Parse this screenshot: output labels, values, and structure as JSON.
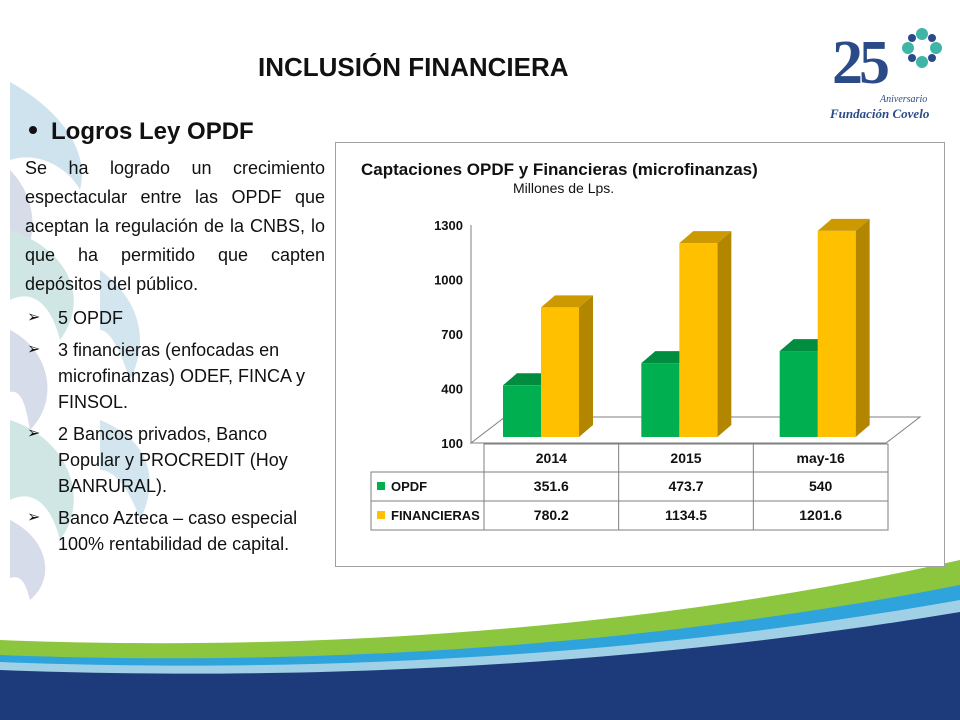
{
  "slide": {
    "title": "INCLUSIÓN FINANCIERA"
  },
  "logo": {
    "number": "25",
    "line1": "Aniversario",
    "line2": "Fundación Covelo"
  },
  "content": {
    "heading": "Logros Ley OPDF",
    "paragraph": "Se ha logrado un crecimiento espectacular entre las OPDF que aceptan la regulación de la CNBS, lo que ha permitido que capten depósitos del público.",
    "items": [
      "5 OPDF",
      "3 financieras (enfocadas en microfinanzas) ODEF, FINCA y FINSOL.",
      "2 Bancos privados, Banco Popular y PROCREDIT (Hoy BANRURAL).",
      "Banco Azteca – caso especial 100% rentabilidad de capital."
    ]
  },
  "colors": {
    "opdf": "#00b050",
    "financieras": "#ffc000"
  },
  "chart_data": {
    "type": "bar",
    "title": "Captaciones OPDF y Financieras (microfinanzas)",
    "subtitle": "Millones de Lps.",
    "categories": [
      "2014",
      "2015",
      "may-16"
    ],
    "series": [
      {
        "name": "OPDF",
        "values": [
          351.6,
          473.7,
          540
        ],
        "labels": [
          "351.6",
          "473.7",
          "540"
        ]
      },
      {
        "name": "FINANCIERAS",
        "values": [
          780.2,
          1134.5,
          1201.6
        ],
        "labels": [
          "780.2",
          "1134.5",
          "1201.6"
        ]
      }
    ],
    "yticks": [
      "100",
      "400",
      "700",
      "1000",
      "1300"
    ],
    "ylim": [
      100,
      1300
    ],
    "grid": false,
    "legend": "data table"
  }
}
